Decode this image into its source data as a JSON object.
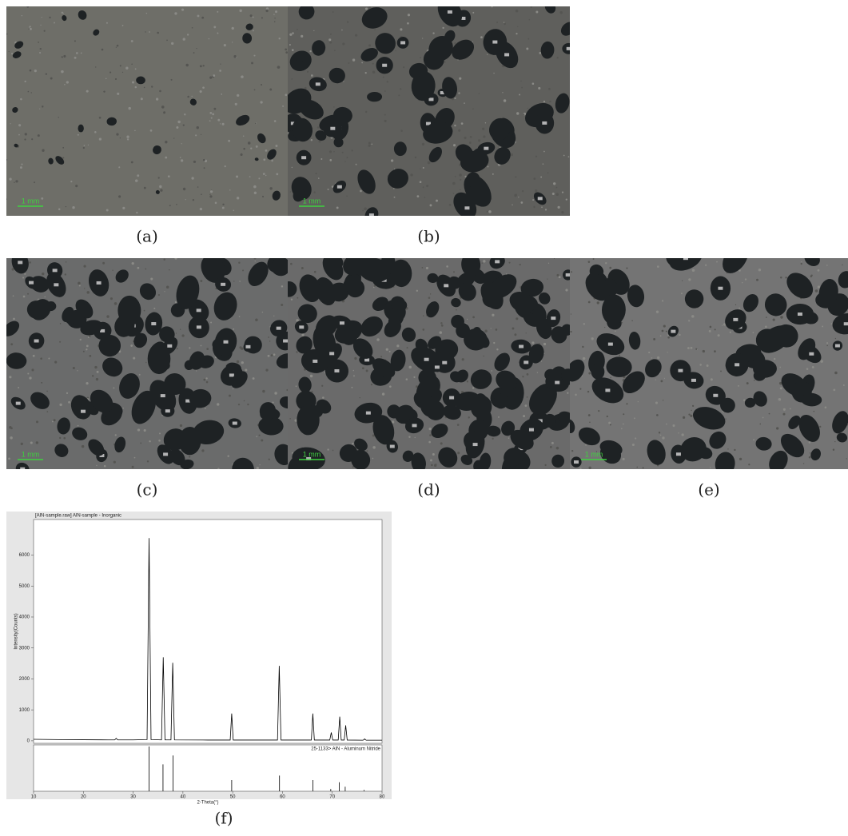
{
  "panels": [
    {
      "label": "(a)",
      "scale_bar": "1 mm"
    },
    {
      "label": "(b)",
      "scale_bar": "1 mm"
    },
    {
      "label": "(c)",
      "scale_bar": "1 mm"
    },
    {
      "label": "(d)",
      "scale_bar": "1 mm"
    },
    {
      "label": "(e)",
      "scale_bar": "1 mm"
    },
    {
      "label": "(f)"
    }
  ],
  "chart_data": {
    "type": "line",
    "title": "[AlN-sample.raw] AlN-sample - Inorganic",
    "xlabel": "2-Theta(°)",
    "ylabel": "Intensity(Counts)",
    "color": "#000000",
    "x": [
      10,
      15,
      20,
      25,
      26.3,
      26.6,
      26.9,
      30,
      32.8,
      33.2,
      33.6,
      35.7,
      36.05,
      36.4,
      37.6,
      37.95,
      38.3,
      45,
      49.5,
      49.8,
      50.1,
      55,
      59.0,
      59.35,
      59.7,
      65.8,
      66.1,
      66.4,
      69.5,
      69.8,
      70.1,
      71.2,
      71.5,
      71.8,
      72.4,
      72.7,
      73.0,
      76.2,
      76.5,
      76.8,
      80
    ],
    "values": [
      50,
      40,
      35,
      30,
      30,
      80,
      30,
      30,
      40,
      6550,
      40,
      30,
      2700,
      30,
      30,
      2520,
      30,
      25,
      25,
      880,
      25,
      25,
      25,
      2420,
      25,
      25,
      880,
      25,
      25,
      270,
      25,
      25,
      780,
      25,
      25,
      500,
      25,
      20,
      60,
      20,
      20
    ],
    "xlim": [
      10,
      80
    ],
    "xticks": [
      10,
      20,
      30,
      40,
      50,
      60,
      70,
      80
    ],
    "ylim": [
      -80,
      7150
    ],
    "yticks": [
      0,
      1000,
      2000,
      3000,
      4000,
      5000,
      6000
    ],
    "reference": {
      "label": "25-1133> AlN - Aluminum Nitride",
      "x": [
        33.2,
        36.0,
        38.0,
        49.8,
        59.4,
        66.1,
        69.7,
        71.4,
        72.6,
        76.4
      ],
      "values": [
        100,
        60,
        80,
        25,
        35,
        25,
        5,
        20,
        10,
        3
      ],
      "ylim": [
        0,
        100
      ]
    }
  }
}
